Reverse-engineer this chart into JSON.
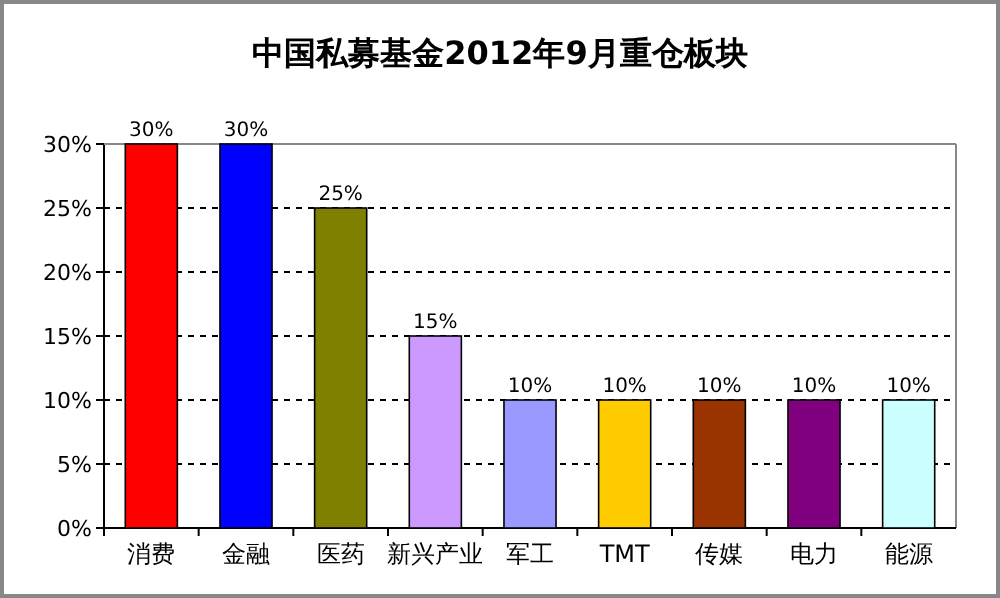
{
  "chart_data": {
    "type": "bar",
    "title": "中国私募基金2012年9月重仓板块",
    "categories": [
      "消费",
      "金融",
      "医药",
      "新兴产业",
      "军工",
      "TMT",
      "传媒",
      "电力",
      "能源"
    ],
    "values": [
      30,
      30,
      25,
      15,
      10,
      10,
      10,
      10,
      10
    ],
    "value_labels": [
      "30%",
      "30%",
      "25%",
      "15%",
      "10%",
      "10%",
      "10%",
      "10%",
      "10%"
    ],
    "colors": [
      "#ff0000",
      "#0000ff",
      "#808000",
      "#cc99ff",
      "#9999ff",
      "#ffcc00",
      "#993300",
      "#800080",
      "#ccffff"
    ],
    "ylim": [
      0,
      30
    ],
    "yticks": [
      {
        "value": 0,
        "label": "0%"
      },
      {
        "value": 5,
        "label": "5%"
      },
      {
        "value": 10,
        "label": "10%"
      },
      {
        "value": 15,
        "label": "15%"
      },
      {
        "value": 20,
        "label": "20%"
      },
      {
        "value": 25,
        "label": "25%"
      },
      {
        "value": 30,
        "label": "30%"
      }
    ],
    "grid": "y"
  }
}
